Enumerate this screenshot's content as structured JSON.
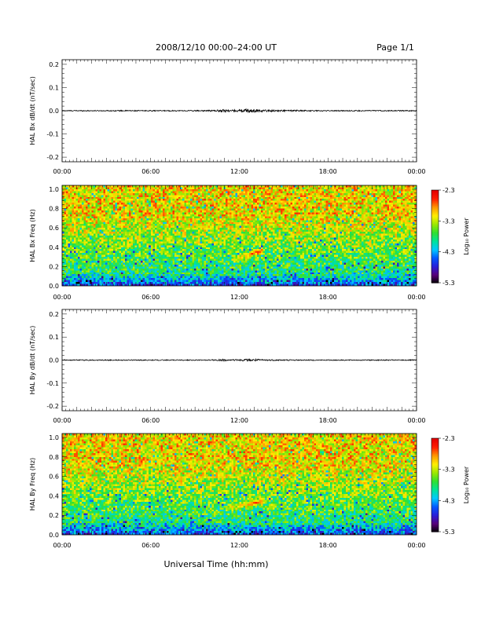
{
  "header": {
    "title": "2008/12/10   00:00–24:00 UT",
    "page": "Page 1/1"
  },
  "footer": {
    "xlabel": "Universal Time (hh:mm)"
  },
  "colors": {
    "line": "#000000",
    "colormap": [
      "#000000",
      "#5a007a",
      "#2a1fd8",
      "#0058ff",
      "#00c8ff",
      "#00e39a",
      "#30e030",
      "#9be800",
      "#fff000",
      "#ff9a00",
      "#ff2000",
      "#e40000"
    ]
  },
  "chart_data": [
    {
      "type": "line",
      "id": "bx-dbdt",
      "ylabel": "HAL Bx dB/dt (nT/sec)",
      "xlim": [
        0,
        24
      ],
      "ylim": [
        -0.22,
        0.22
      ],
      "yticks": [
        "-0.2",
        "-0.1",
        "0.0",
        "0.1",
        "0.2"
      ],
      "ytick_values": [
        -0.2,
        -0.1,
        0.0,
        0.1,
        0.2
      ],
      "xticks": [
        "00:00",
        "06:00",
        "12:00",
        "18:00",
        "00:00"
      ],
      "xtick_values": [
        0,
        6,
        12,
        18,
        24
      ],
      "series": [
        {
          "x": [
            0,
            2,
            4,
            6,
            8,
            10,
            10.5,
            11,
            11.5,
            12,
            12.5,
            13,
            13.5,
            14,
            16,
            18,
            20,
            22,
            24
          ],
          "amplitude": [
            0.002,
            0.002,
            0.002,
            0.002,
            0.002,
            0.003,
            0.004,
            0.007,
            0.004,
            0.005,
            0.008,
            0.007,
            0.005,
            0.004,
            0.003,
            0.002,
            0.002,
            0.002,
            0.002
          ]
        }
      ]
    },
    {
      "type": "heatmap",
      "id": "bx-freq",
      "ylabel": "HAL Bx Freq (Hz)",
      "xlim": [
        0,
        24
      ],
      "ylim": [
        0,
        1.04
      ],
      "yticks": [
        "0.0",
        "0.2",
        "0.4",
        "0.6",
        "0.8",
        "1.0"
      ],
      "ytick_values": [
        0,
        0.2,
        0.4,
        0.6,
        0.8,
        1.0
      ],
      "xticks": [
        "00:00",
        "06:00",
        "12:00",
        "18:00",
        "00:00"
      ],
      "xtick_values": [
        0,
        6,
        12,
        18,
        24
      ],
      "colorbar": {
        "label": "Log₁₀ Power",
        "range": [
          -5.3,
          -2.3
        ],
        "ticks": [
          "-2.3",
          "-3.3",
          "-4.3",
          "-5.3"
        ],
        "tick_values": [
          -2.3,
          -3.3,
          -4.3,
          -5.3
        ]
      },
      "features": [
        {
          "t_start": 11.5,
          "t_end": 13.6,
          "freq_start": 0.26,
          "freq_end": 0.36,
          "peak_log_power": -2.5
        }
      ]
    },
    {
      "type": "line",
      "id": "by-dbdt",
      "ylabel": "HAL By dB/dt (nT/sec)",
      "xlim": [
        0,
        24
      ],
      "ylim": [
        -0.22,
        0.22
      ],
      "yticks": [
        "-0.2",
        "-0.1",
        "0.0",
        "0.1",
        "0.2"
      ],
      "ytick_values": [
        -0.2,
        -0.1,
        0.0,
        0.1,
        0.2
      ],
      "xticks": [
        "00:00",
        "06:00",
        "12:00",
        "18:00",
        "00:00"
      ],
      "xtick_values": [
        0,
        6,
        12,
        18,
        24
      ],
      "series": [
        {
          "x": [
            0,
            2,
            4,
            6,
            8,
            10,
            10.5,
            11,
            11.5,
            12,
            12.5,
            13,
            13.5,
            14,
            16,
            18,
            20,
            22,
            24
          ],
          "amplitude": [
            0.002,
            0.002,
            0.002,
            0.002,
            0.002,
            0.002,
            0.003,
            0.005,
            0.003,
            0.004,
            0.005,
            0.005,
            0.004,
            0.003,
            0.002,
            0.002,
            0.002,
            0.002,
            0.002
          ]
        }
      ]
    },
    {
      "type": "heatmap",
      "id": "by-freq",
      "ylabel": "HAL By Freq (Hz)",
      "xlim": [
        0,
        24
      ],
      "ylim": [
        0,
        1.04
      ],
      "yticks": [
        "0.0",
        "0.2",
        "0.4",
        "0.6",
        "0.8",
        "1.0"
      ],
      "ytick_values": [
        0,
        0.2,
        0.4,
        0.6,
        0.8,
        1.0
      ],
      "xticks": [
        "00:00",
        "06:00",
        "12:00",
        "18:00",
        "00:00"
      ],
      "xtick_values": [
        0,
        6,
        12,
        18,
        24
      ],
      "colorbar": {
        "label": "Log₁₀ Power",
        "range": [
          -5.3,
          -2.3
        ],
        "ticks": [
          "-2.3",
          "-3.3",
          "-4.3",
          "-5.3"
        ],
        "tick_values": [
          -2.3,
          -3.3,
          -4.3,
          -5.3
        ]
      },
      "features": [
        {
          "t_start": 11.0,
          "t_end": 13.6,
          "freq_start": 0.26,
          "freq_end": 0.34,
          "peak_log_power": -2.6
        }
      ]
    }
  ]
}
